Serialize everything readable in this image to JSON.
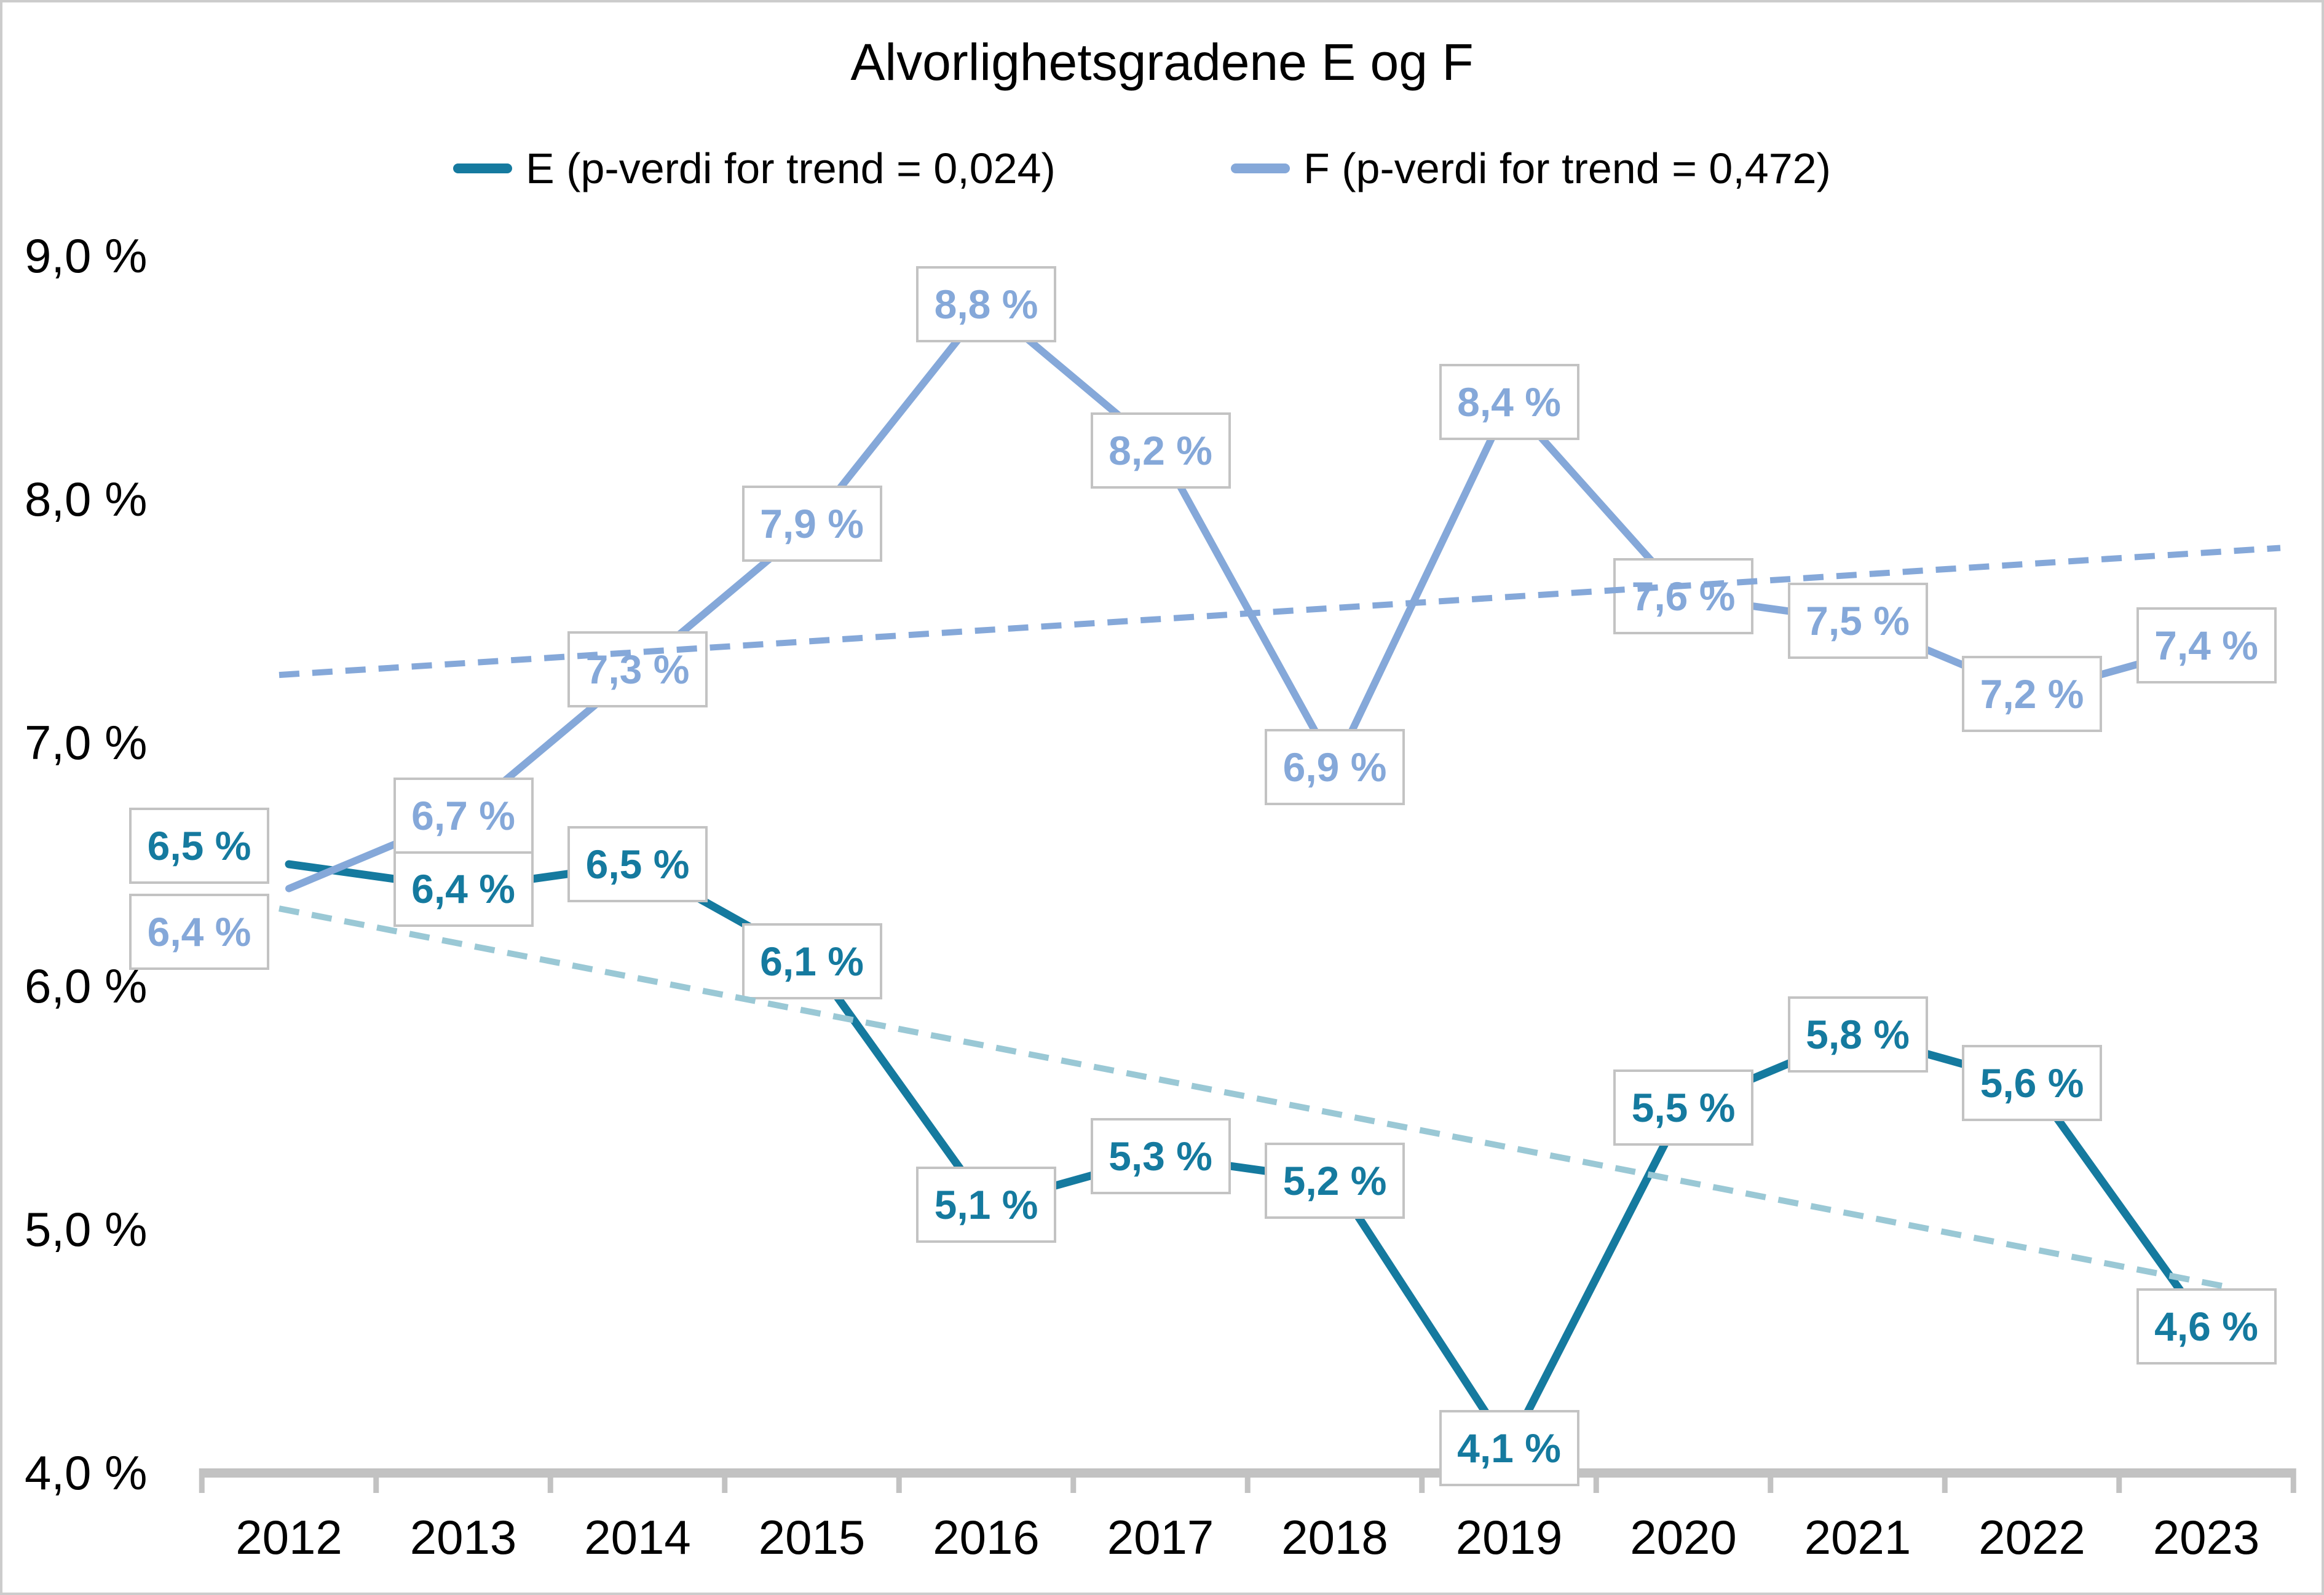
{
  "title": "Alvorlighetsgradene E og F",
  "legend": {
    "items": [
      {
        "label": "E (p-verdi for trend = 0,024)",
        "color": "#157a9f"
      },
      {
        "label": "F (p-verdi for trend = 0,472)",
        "color": "#85a8d9"
      }
    ]
  },
  "chart_data": {
    "type": "line",
    "title": "Alvorlighetsgradene E og F",
    "categories": [
      "2012",
      "2013",
      "2014",
      "2015",
      "2016",
      "2017",
      "2018",
      "2019",
      "2020",
      "2021",
      "2022",
      "2023"
    ],
    "series": [
      {
        "name": "E",
        "legend_label": "E (p-verdi for trend = 0,024)",
        "color": "#157a9f",
        "values": [
          6.5,
          6.4,
          6.5,
          6.1,
          5.1,
          5.3,
          5.2,
          4.1,
          5.5,
          5.8,
          5.6,
          4.6
        ],
        "labels": [
          "6,5 %",
          "6,4 %",
          "6,5 %",
          "6,1 %",
          "5,1 %",
          "5,3 %",
          "5,2 %",
          "4,1 %",
          "5,5 %",
          "5,8 %",
          "5,6 %",
          "4,6 %"
        ]
      },
      {
        "name": "F",
        "legend_label": "F (p-verdi for trend = 0,472)",
        "color": "#85a8d9",
        "values": [
          6.4,
          6.7,
          7.3,
          7.9,
          8.8,
          8.2,
          6.9,
          8.4,
          7.6,
          7.5,
          7.2,
          7.4
        ],
        "labels": [
          "6,4 %",
          "6,7 %",
          "7,3 %",
          "7,9 %",
          "8,8 %",
          "8,2 %",
          "6,9 %",
          "8,4 %",
          "7,6 %",
          "7,5 %",
          "7,2 %",
          "7,4 %"
        ]
      }
    ],
    "trendlines": [
      {
        "series": "E",
        "style": "dashed",
        "color": "#9ac8d5",
        "start_value": 6.31,
        "end_value": 4.78
      },
      {
        "series": "F",
        "style": "dashed",
        "color": "#85a8d9",
        "start_value": 7.28,
        "end_value": 7.78
      }
    ],
    "y_ticks": {
      "labels": [
        "9,0 %",
        "8,0 %",
        "7,0 %",
        "6,0 %",
        "5,0 %",
        "4,0 %"
      ],
      "values": [
        9.0,
        8.0,
        7.0,
        6.0,
        5.0,
        4.0
      ]
    },
    "ylim": [
      4.0,
      9.0
    ],
    "grid": false,
    "legend_position": "top",
    "axis_color": "#c2c2c2",
    "label_box_border_color": "#c3c3c3"
  }
}
